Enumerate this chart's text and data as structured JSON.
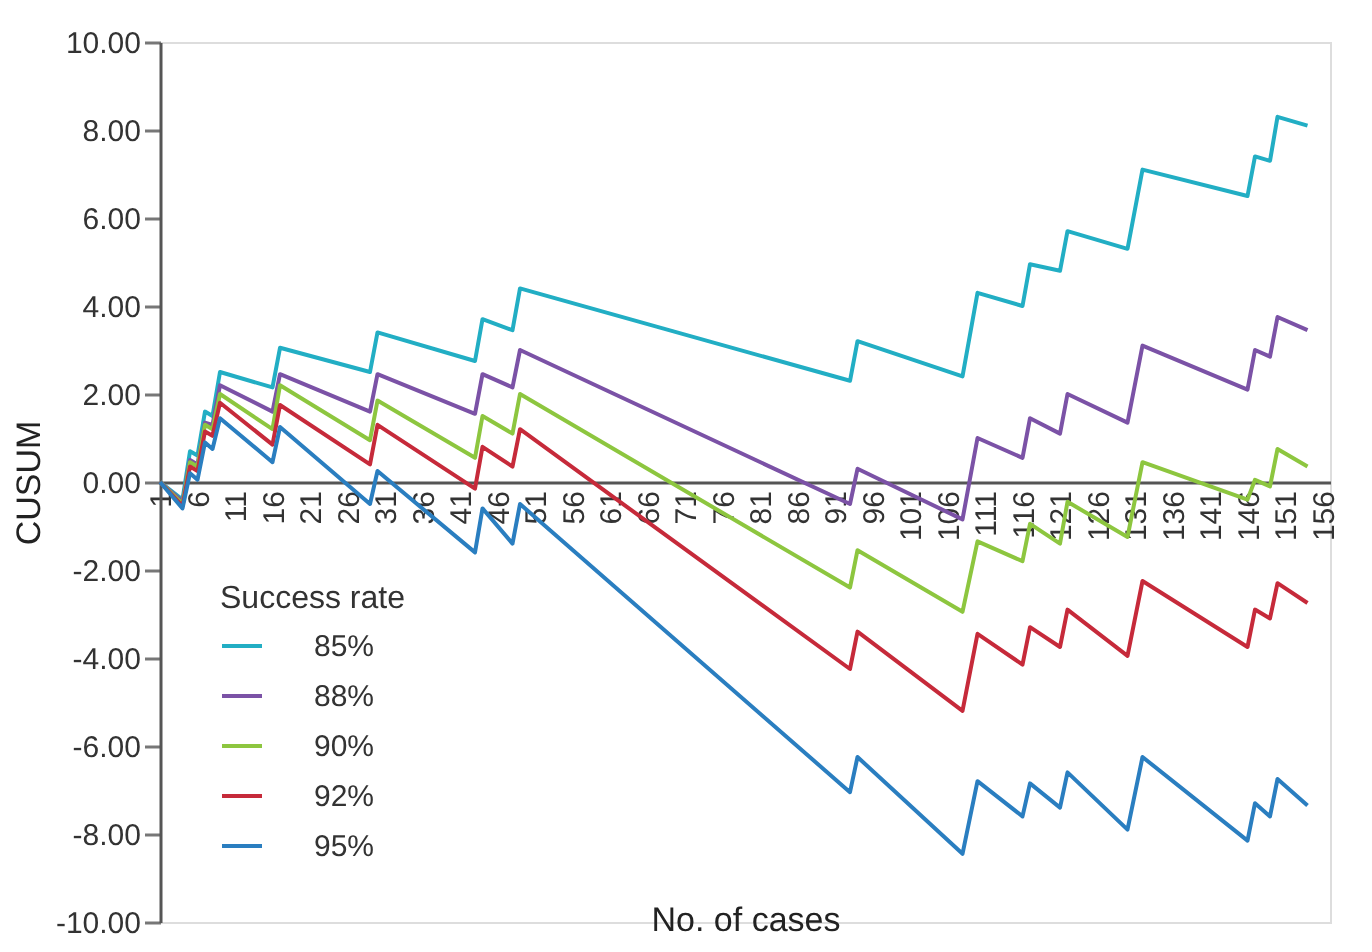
{
  "chart_data": {
    "type": "line",
    "xlabel": "No. of cases",
    "ylabel": "CUSUM",
    "legend_title": "Success rate",
    "legend": "bottom left",
    "grid": false,
    "marker": "none",
    "line_style": "solid",
    "x": [
      1,
      4,
      5,
      6,
      7,
      8,
      9,
      16,
      17,
      29,
      30,
      43,
      44,
      48,
      49,
      93,
      94,
      108,
      110,
      116,
      117,
      121,
      122,
      130,
      132,
      146,
      147,
      149,
      150,
      154
    ],
    "xlim": [
      1,
      157
    ],
    "xticks": [
      1,
      6,
      11,
      16,
      21,
      26,
      31,
      36,
      41,
      46,
      51,
      56,
      61,
      66,
      71,
      76,
      81,
      86,
      91,
      96,
      101,
      106,
      111,
      116,
      121,
      126,
      131,
      136,
      141,
      146,
      151,
      156
    ],
    "ylim": [
      -10,
      10
    ],
    "yticks": [
      {
        "value": -10,
        "label": "-10.00"
      },
      {
        "value": -8,
        "label": "-8.00"
      },
      {
        "value": -6,
        "label": "-6.00"
      },
      {
        "value": -4,
        "label": "-4.00"
      },
      {
        "value": -2,
        "label": "-2.00"
      },
      {
        "value": 0,
        "label": "0.00"
      },
      {
        "value": 2,
        "label": "2.00"
      },
      {
        "value": 4,
        "label": "4.00"
      },
      {
        "value": 6,
        "label": "6.00"
      },
      {
        "value": 8,
        "label": "8.00"
      },
      {
        "value": 10,
        "label": "10.00"
      }
    ],
    "series": [
      {
        "name": "85%",
        "color": "#22aec4",
        "values": [
          0,
          -0.4,
          0.7,
          0.6,
          1.6,
          1.5,
          2.5,
          2.15,
          3.05,
          2.5,
          3.4,
          2.75,
          3.7,
          3.45,
          4.4,
          2.3,
          3.2,
          2.4,
          4.3,
          4.0,
          4.95,
          4.8,
          5.7,
          5.3,
          7.1,
          6.5,
          7.4,
          7.3,
          8.3,
          8.1
        ]
      },
      {
        "name": "88%",
        "color": "#7b52a6",
        "values": [
          0,
          -0.45,
          0.5,
          0.4,
          1.35,
          1.3,
          2.2,
          1.6,
          2.45,
          1.6,
          2.45,
          1.55,
          2.45,
          2.15,
          3.0,
          -0.5,
          0.3,
          -0.85,
          1.0,
          0.55,
          1.45,
          1.1,
          2.0,
          1.35,
          3.1,
          2.1,
          3.0,
          2.85,
          3.75,
          3.45
        ]
      },
      {
        "name": "90%",
        "color": "#8dc63f",
        "values": [
          0,
          -0.5,
          0.45,
          0.35,
          1.3,
          1.2,
          2.0,
          1.2,
          2.2,
          0.95,
          1.85,
          0.55,
          1.5,
          1.1,
          2.0,
          -2.4,
          -1.55,
          -2.95,
          -1.35,
          -1.8,
          -0.95,
          -1.4,
          -0.45,
          -1.25,
          0.45,
          -0.4,
          0.05,
          -0.1,
          0.75,
          0.35
        ]
      },
      {
        "name": "92%",
        "color": "#c62a3a",
        "values": [
          0,
          -0.55,
          0.35,
          0.25,
          1.15,
          1.05,
          1.8,
          0.85,
          1.75,
          0.4,
          1.3,
          -0.15,
          0.8,
          0.35,
          1.2,
          -4.25,
          -3.4,
          -5.2,
          -3.45,
          -4.15,
          -3.3,
          -3.75,
          -2.9,
          -3.95,
          -2.25,
          -3.75,
          -2.9,
          -3.1,
          -2.3,
          -2.75
        ]
      },
      {
        "name": "95%",
        "color": "#2a7ec0",
        "values": [
          0,
          -0.6,
          0.2,
          0.05,
          0.9,
          0.75,
          1.45,
          0.45,
          1.25,
          -0.5,
          0.25,
          -1.6,
          -0.6,
          -1.4,
          -0.5,
          -7.05,
          -6.25,
          -8.45,
          -6.8,
          -7.6,
          -6.85,
          -7.4,
          -6.6,
          -7.9,
          -6.25,
          -8.15,
          -7.3,
          -7.6,
          -6.75,
          -7.35
        ]
      }
    ]
  }
}
